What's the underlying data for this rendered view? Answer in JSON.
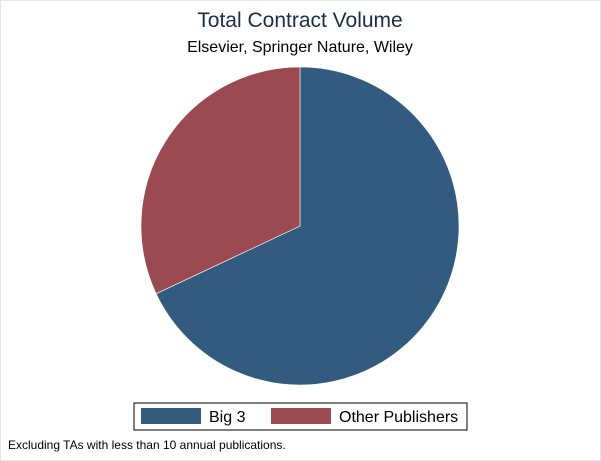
{
  "chart_data": {
    "type": "pie",
    "title": "Total Contract Volume",
    "subtitle": "Elsevier, Springer Nature, Wiley",
    "slices": [
      {
        "label": "Big 3",
        "value": 68,
        "color": "#335b80"
      },
      {
        "label": "Other Publishers",
        "value": 32,
        "color": "#9a4a50"
      }
    ],
    "start_angle_deg": 0,
    "direction": "clockwise",
    "legend_position": "bottom",
    "note": "Excluding TAs with less than 10 annual publications."
  }
}
